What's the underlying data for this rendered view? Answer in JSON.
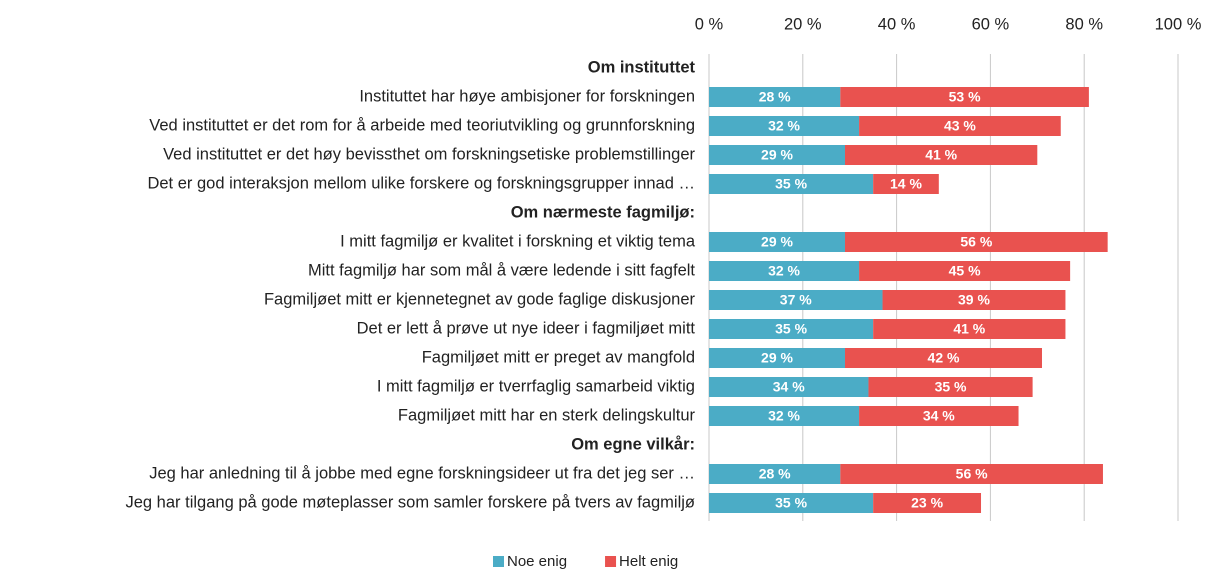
{
  "chart_data": {
    "type": "stacked-bar-horizontal",
    "categories": [
      "Om instituttet",
      "Instituttet har høye ambisjoner for forskningen",
      "Ved instituttet er det rom for å arbeide med teoriutvikling og grunnforskning",
      "Ved instituttet er det høy bevissthet om forskningsetiske problemstillinger",
      "Det er god interaksjon mellom ulike forskere og forskningsgrupper innad …",
      "Om nærmeste fagmiljø:",
      "I mitt fagmiljø er kvalitet i forskning et viktig tema",
      "Mitt fagmiljø har som mål å være ledende i sitt fagfelt",
      "Fagmiljøet mitt er kjennetegnet av gode faglige diskusjoner",
      "Det er lett å prøve ut nye ideer i fagmiljøet mitt",
      "Fagmiljøet mitt er preget av mangfold",
      "I mitt fagmiljø er tverrfaglig samarbeid viktig",
      "Fagmiljøet mitt har en sterk delingskultur",
      "Om  egne vilkår:",
      "Jeg har anledning til å jobbe med egne forskningsideer ut fra det jeg ser …",
      "Jeg har tilgang på gode møteplasser som samler forskere på tvers av fagmiljø"
    ],
    "series": [
      {
        "name": "Noe enig",
        "color": "#4bacc6",
        "values": [
          null,
          28,
          32,
          29,
          35,
          null,
          29,
          32,
          37,
          35,
          29,
          34,
          32,
          null,
          28,
          35
        ],
        "value_labels": [
          null,
          "28 %",
          "32 %",
          "29 %",
          "35 %",
          null,
          "29 %",
          "32 %",
          "37 %",
          "35 %",
          "29 %",
          "34 %",
          "32 %",
          null,
          "28 %",
          "35 %"
        ]
      },
      {
        "name": "Helt enig",
        "color": "#e9524f",
        "values": [
          null,
          53,
          43,
          41,
          14,
          null,
          56,
          45,
          39,
          41,
          42,
          35,
          34,
          null,
          56,
          23
        ],
        "value_labels": [
          null,
          "53 %",
          "43 %",
          "41 %",
          "14 %",
          null,
          "56 %",
          "45 %",
          "39 %",
          "41 %",
          "42 %",
          "35 %",
          "34 %",
          null,
          "56 %",
          "23 %"
        ]
      }
    ],
    "xlim": [
      0,
      100
    ],
    "xticks": [
      {
        "value": 0,
        "label": "0 %"
      },
      {
        "value": 20,
        "label": "20 %"
      },
      {
        "value": 40,
        "label": "40 %"
      },
      {
        "value": 60,
        "label": "60 %"
      },
      {
        "value": 80,
        "label": "80 %"
      },
      {
        "value": 100,
        "label": "100 %"
      }
    ],
    "grid": true,
    "legend": "bottom"
  }
}
